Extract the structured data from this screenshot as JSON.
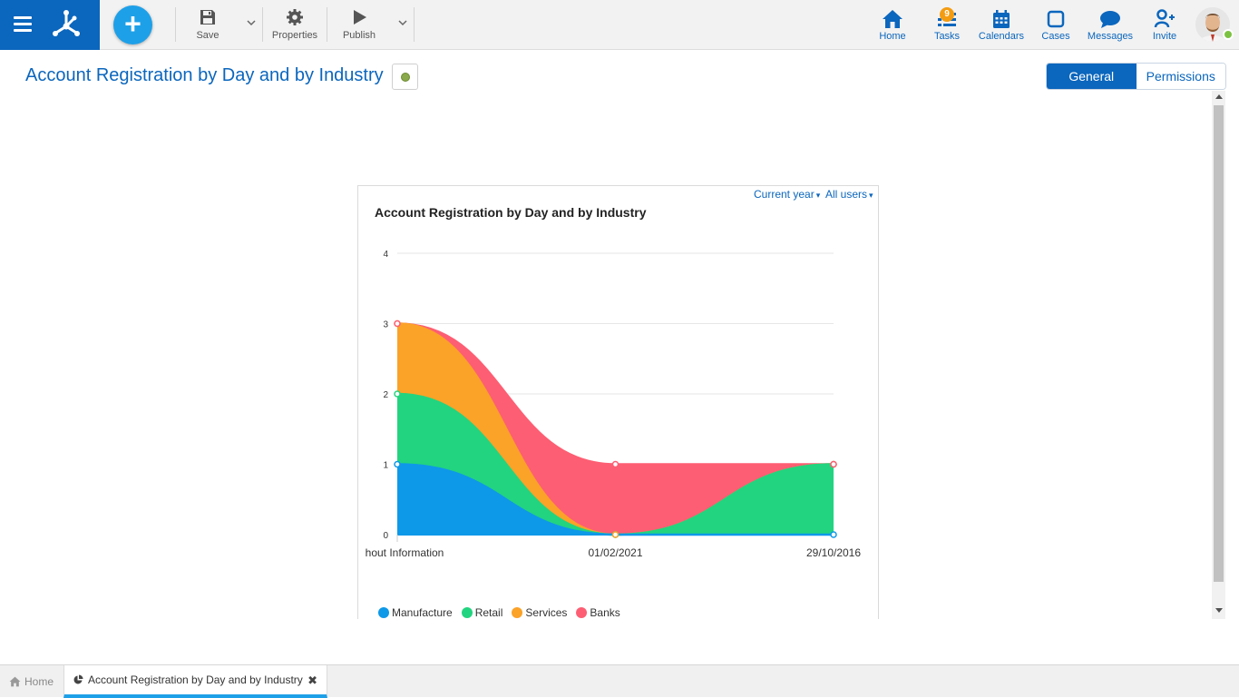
{
  "topbar": {
    "add_label": "+",
    "toolbar": {
      "save_label": "Save",
      "properties_label": "Properties",
      "publish_label": "Publish"
    },
    "nav": {
      "home_label": "Home",
      "tasks_label": "Tasks",
      "tasks_badge": "9",
      "calendars_label": "Calendars",
      "cases_label": "Cases",
      "messages_label": "Messages",
      "invite_label": "Invite"
    },
    "accent_color": "#0b66bd"
  },
  "page": {
    "title": "Account Registration by Day and by Industry",
    "tabs": {
      "general": "General",
      "permissions": "Permissions"
    }
  },
  "widget": {
    "filters": {
      "period": "Current year",
      "users": "All users"
    },
    "title": "Account Registration by Day and by Industry"
  },
  "chart_data": {
    "type": "area",
    "stacked": true,
    "title": "Account Registration by Day and by Industry",
    "categories": [
      "Without Information",
      "01/02/2021",
      "29/10/2016"
    ],
    "category_labels_visible": [
      "hout Information",
      "01/02/2021",
      "29/10/2016"
    ],
    "ylim": [
      0,
      4
    ],
    "yticks": [
      "0",
      "1",
      "2",
      "3",
      "4"
    ],
    "grid": true,
    "legend_position": "bottom-left",
    "series": [
      {
        "name": "Manufacture",
        "values": [
          1,
          0,
          0
        ],
        "color": "#0e98e8"
      },
      {
        "name": "Retail",
        "values": [
          1,
          0,
          1
        ],
        "color": "#22d47f"
      },
      {
        "name": "Services",
        "values": [
          1,
          0,
          0
        ],
        "color": "#fba228"
      },
      {
        "name": "Banks",
        "values": [
          0,
          1,
          0
        ],
        "color": "#fd5e73"
      }
    ]
  },
  "bottom_tabs": {
    "home_label": "Home",
    "active_label": "Account Registration by Day and by Industry",
    "close_glyph": "✖"
  }
}
